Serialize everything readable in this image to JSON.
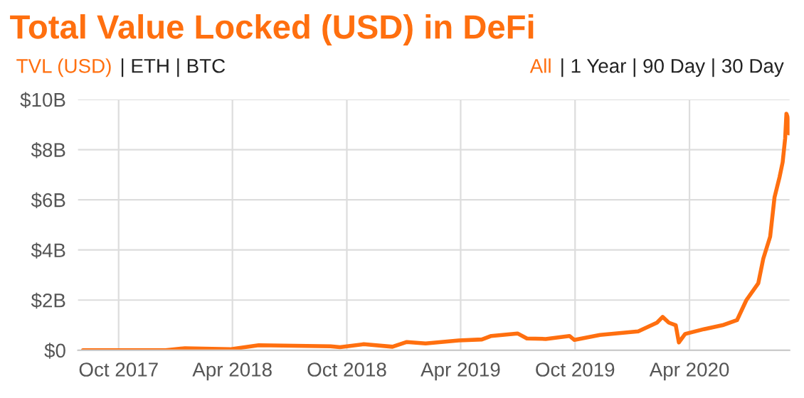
{
  "chart_data": {
    "type": "line",
    "title": "Total Value Locked (USD) in DeFi",
    "annotations": [
      "TVL (USD)",
      "| ETH | BTC",
      "All",
      "| 1 Year | 90 Day | 30 Day"
    ],
    "x": [
      "2017-08-05",
      "2017-12-15",
      "2018-01-15",
      "2018-03-28",
      "2018-05-13",
      "2018-09-05",
      "2018-09-20",
      "2018-10-28",
      "2018-12-13",
      "2019-01-05",
      "2019-02-04",
      "2019-03-29",
      "2019-05-05",
      "2019-05-20",
      "2019-07-01",
      "2019-07-16",
      "2019-08-15",
      "2019-09-22",
      "2019-09-30",
      "2019-11-10",
      "2020-01-10",
      "2020-02-09",
      "2020-02-18",
      "2020-02-28",
      "2020-03-10",
      "2020-03-15",
      "2020-03-25",
      "2020-04-24",
      "2020-05-24",
      "2020-06-16",
      "2020-07-01",
      "2020-07-20",
      "2020-07-28",
      "2020-08-08",
      "2020-08-15",
      "2020-08-23",
      "2020-08-28",
      "2020-09-01",
      "2020-09-03",
      "2020-09-05",
      "2020-09-07"
    ],
    "series": [
      {
        "color": "#ff6f0f",
        "values": [
          0,
          0,
          0.08,
          0.04,
          0.2,
          0.16,
          0.12,
          0.24,
          0.14,
          0.33,
          0.27,
          0.39,
          0.43,
          0.57,
          0.67,
          0.47,
          0.45,
          0.57,
          0.41,
          0.61,
          0.75,
          1.1,
          1.33,
          1.1,
          1.0,
          0.31,
          0.65,
          0.84,
          1.0,
          1.2,
          2.0,
          2.67,
          3.65,
          4.53,
          6.1,
          6.9,
          7.5,
          8.45,
          9.43,
          9.3,
          8.65
        ]
      }
    ],
    "xlim": [
      "2017-07-28",
      "2020-09-08"
    ],
    "xticks": [
      {
        "value": "2017-10-01",
        "label": "Oct 2017"
      },
      {
        "value": "2018-04-01",
        "label": "Apr 2018"
      },
      {
        "value": "2018-10-01",
        "label": "Oct 2018"
      },
      {
        "value": "2019-04-01",
        "label": "Apr 2019"
      },
      {
        "value": "2019-10-01",
        "label": "Oct 2019"
      },
      {
        "value": "2020-04-01",
        "label": "Apr 2020"
      }
    ],
    "ylim": [
      0,
      10
    ],
    "yticks": [
      {
        "value": 0,
        "label": "$0"
      },
      {
        "value": 2,
        "label": "$2B"
      },
      {
        "value": 4,
        "label": "$4B"
      },
      {
        "value": 6,
        "label": "$6B"
      },
      {
        "value": 8,
        "label": "$8B"
      },
      {
        "value": 10,
        "label": "$10B"
      }
    ],
    "grid": true,
    "legend": false,
    "marker": "none",
    "line_style": "solid"
  }
}
